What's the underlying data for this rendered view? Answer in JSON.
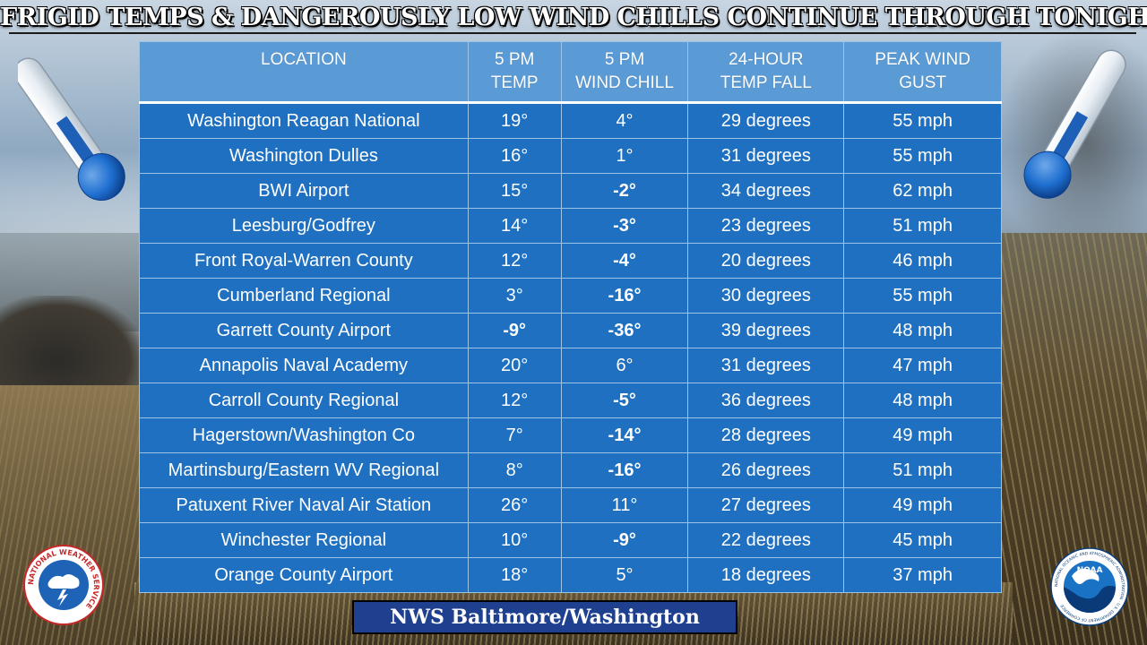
{
  "title": "FRIGID TEMPS & DANGEROUSLY LOW WIND CHILLS CONTINUE THROUGH TONIGHT",
  "table": {
    "headers": [
      {
        "line1": "LOCATION",
        "line2": ""
      },
      {
        "line1": "5 PM",
        "line2": "TEMP"
      },
      {
        "line1": "5 PM",
        "line2": "WIND CHILL"
      },
      {
        "line1": "24-HOUR",
        "line2": "TEMP FALL"
      },
      {
        "line1": "PEAK WIND",
        "line2": "GUST"
      }
    ],
    "rows": [
      {
        "location": "Washington Reagan National",
        "temp": "19°",
        "wind_chill": "4°",
        "temp_fall": "29 degrees",
        "gust": "55 mph"
      },
      {
        "location": "Washington Dulles",
        "temp": "16°",
        "wind_chill": "1°",
        "temp_fall": "31 degrees",
        "gust": "55 mph"
      },
      {
        "location": "BWI Airport",
        "temp": "15°",
        "wind_chill": "-2°",
        "temp_fall": "34 degrees",
        "gust": "62 mph"
      },
      {
        "location": "Leesburg/Godfrey",
        "temp": "14°",
        "wind_chill": "-3°",
        "temp_fall": "23 degrees",
        "gust": "51 mph"
      },
      {
        "location": "Front Royal-Warren County",
        "temp": "12°",
        "wind_chill": "-4°",
        "temp_fall": "20 degrees",
        "gust": "46 mph"
      },
      {
        "location": "Cumberland Regional",
        "temp": "3°",
        "wind_chill": "-16°",
        "temp_fall": "30 degrees",
        "gust": "55 mph"
      },
      {
        "location": "Garrett County Airport",
        "temp": "-9°",
        "wind_chill": "-36°",
        "temp_fall": "39 degrees",
        "gust": "48 mph"
      },
      {
        "location": "Annapolis Naval Academy",
        "temp": "20°",
        "wind_chill": "6°",
        "temp_fall": "31 degrees",
        "gust": "47 mph"
      },
      {
        "location": "Carroll County Regional",
        "temp": "12°",
        "wind_chill": "-5°",
        "temp_fall": "36 degrees",
        "gust": "48 mph"
      },
      {
        "location": "Hagerstown/Washington Co",
        "temp": "7°",
        "wind_chill": "-14°",
        "temp_fall": "28 degrees",
        "gust": "49 mph"
      },
      {
        "location": "Martinsburg/Eastern WV Regional",
        "temp": "8°",
        "wind_chill": "-16°",
        "temp_fall": "26 degrees",
        "gust": "51 mph"
      },
      {
        "location": "Patuxent River Naval Air Station",
        "temp": "26°",
        "wind_chill": "11°",
        "temp_fall": "27 degrees",
        "gust": "49 mph"
      },
      {
        "location": "Winchester Regional",
        "temp": "10°",
        "wind_chill": "-9°",
        "temp_fall": "22 degrees",
        "gust": "45 mph"
      },
      {
        "location": "Orange County Airport",
        "temp": "18°",
        "wind_chill": "5°",
        "temp_fall": "18 degrees",
        "gust": "37 mph"
      }
    ]
  },
  "footer": "NWS Baltimore/Washington",
  "logos": {
    "left": {
      "name": "nws-logo",
      "text": "NATIONAL WEATHER SERVICE"
    },
    "right": {
      "name": "noaa-logo",
      "text": "NOAA",
      "ring_text": "NATIONAL OCEANIC AND ATMOSPHERIC ADMINISTRATION · U.S. DEPARTMENT OF COMMERCE"
    }
  },
  "colors": {
    "header_bg": "#5b9bd5",
    "cell_bg": "#1f70c1",
    "footer_bg": "#1f3f8f",
    "thermometer_blue": "#1565c0"
  },
  "icons": [
    "thermometer-icon",
    "thermometer-icon"
  ]
}
